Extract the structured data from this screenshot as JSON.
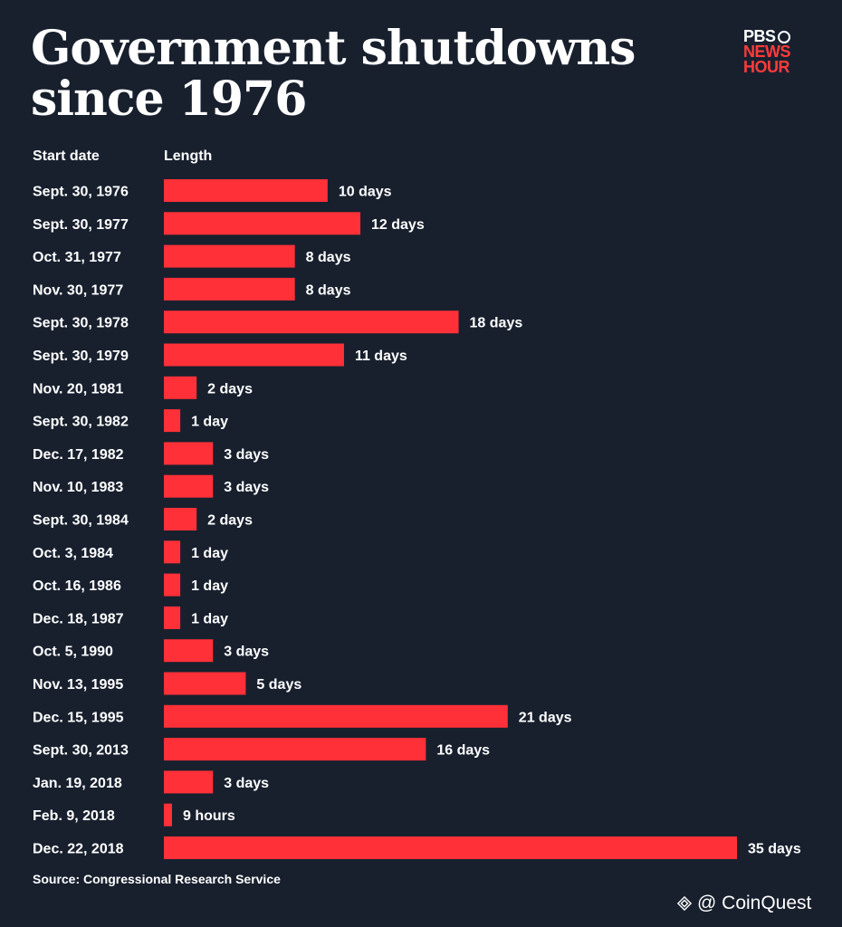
{
  "title_line1": "Government shutdowns",
  "title_line2": "since 1976",
  "logo": {
    "line1": "PBS",
    "line2": "NEWS",
    "line3": "HOUR"
  },
  "column_headers": {
    "date": "Start date",
    "length": "Length"
  },
  "source": "Source: Congressional Research Service",
  "watermark": "@ CoinQuest",
  "colors": {
    "background": "#18202e",
    "bar": "#ff3038",
    "text": "#ffffff",
    "logo_red": "#ff3b3b"
  },
  "chart_data": {
    "type": "bar",
    "orientation": "horizontal",
    "unit": "days",
    "categories": [
      "Sept. 30, 1976",
      "Sept. 30, 1977",
      "Oct. 31, 1977",
      "Nov. 30, 1977",
      "Sept. 30, 1978",
      "Sept. 30, 1979",
      "Nov. 20, 1981",
      "Sept. 30, 1982",
      "Dec. 17, 1982",
      "Nov. 10, 1983",
      "Sept. 30, 1984",
      "Oct. 3, 1984",
      "Oct. 16, 1986",
      "Dec. 18, 1987",
      "Oct. 5, 1990",
      "Nov. 13, 1995",
      "Dec. 15, 1995",
      "Sept. 30, 2013",
      "Jan. 19, 2018",
      "Feb. 9, 2018",
      "Dec. 22, 2018"
    ],
    "values": [
      10,
      12,
      8,
      8,
      18,
      11,
      2,
      1,
      3,
      3,
      2,
      1,
      1,
      1,
      3,
      5,
      21,
      16,
      3,
      0.375,
      35
    ],
    "labels": [
      "10 days",
      "12 days",
      "8 days",
      "8 days",
      "18 days",
      "11 days",
      "2 days",
      "1 day",
      "3 days",
      "3 days",
      "2 days",
      "1 day",
      "1 day",
      "1 day",
      "3 days",
      "5 days",
      "21 days",
      "16 days",
      "3 days",
      "9 hours",
      "35 days"
    ],
    "xlim": [
      0,
      35
    ]
  }
}
